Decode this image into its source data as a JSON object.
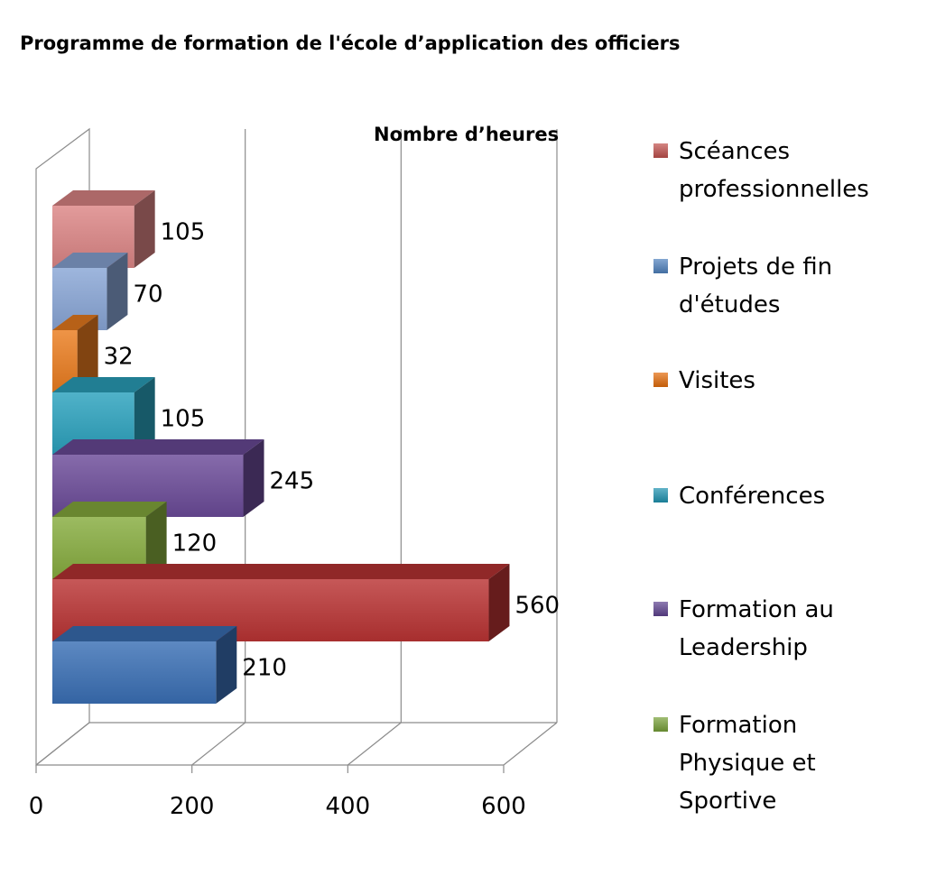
{
  "chart_data": {
    "type": "bar",
    "orientation": "horizontal",
    "style": "3d",
    "title": "Programme de formation de l'école d’application des officiers",
    "xlabel": "Nombre d’heures",
    "ylabel": "",
    "xlim": [
      0,
      600
    ],
    "xticks": [
      0,
      200,
      400,
      600
    ],
    "grid": true,
    "legend_position": "right",
    "bars_bottom_to_top": [
      {
        "name": "",
        "value": 210,
        "color": "#3a6fb5"
      },
      {
        "name": "",
        "value": 560,
        "color": "#b93333"
      },
      {
        "name": "Formation Physique et Sportive",
        "value": 120,
        "color": "#86ac3e"
      },
      {
        "name": "Formation au Leadership",
        "value": 245,
        "color": "#6b4a98"
      },
      {
        "name": "Conférences",
        "value": 105,
        "color": "#2aa1bd"
      },
      {
        "name": "Visites",
        "value": 32,
        "color": "#ea7c1f"
      },
      {
        "name": "Projets de fin d'études",
        "value": 70,
        "color": "#89a6d6"
      },
      {
        "name": "Scéances professionnelles",
        "value": 105,
        "color": "#dc8585"
      }
    ],
    "legend": [
      {
        "lines": [
          "Scéances",
          "professionnelles"
        ],
        "color": "#c0504d"
      },
      {
        "lines": [
          "Projets de fin",
          "d'études"
        ],
        "color": "#4f81bd"
      },
      {
        "lines": [
          "Visites"
        ],
        "color": "#e46c0a"
      },
      {
        "lines": [
          "Conférences"
        ],
        "color": "#1f93b0"
      },
      {
        "lines": [
          "Formation au",
          "Leadership"
        ],
        "color": "#5e4290"
      },
      {
        "lines": [
          "Formation",
          "Physique et",
          "Sportive"
        ],
        "color": "#77a038"
      }
    ]
  }
}
